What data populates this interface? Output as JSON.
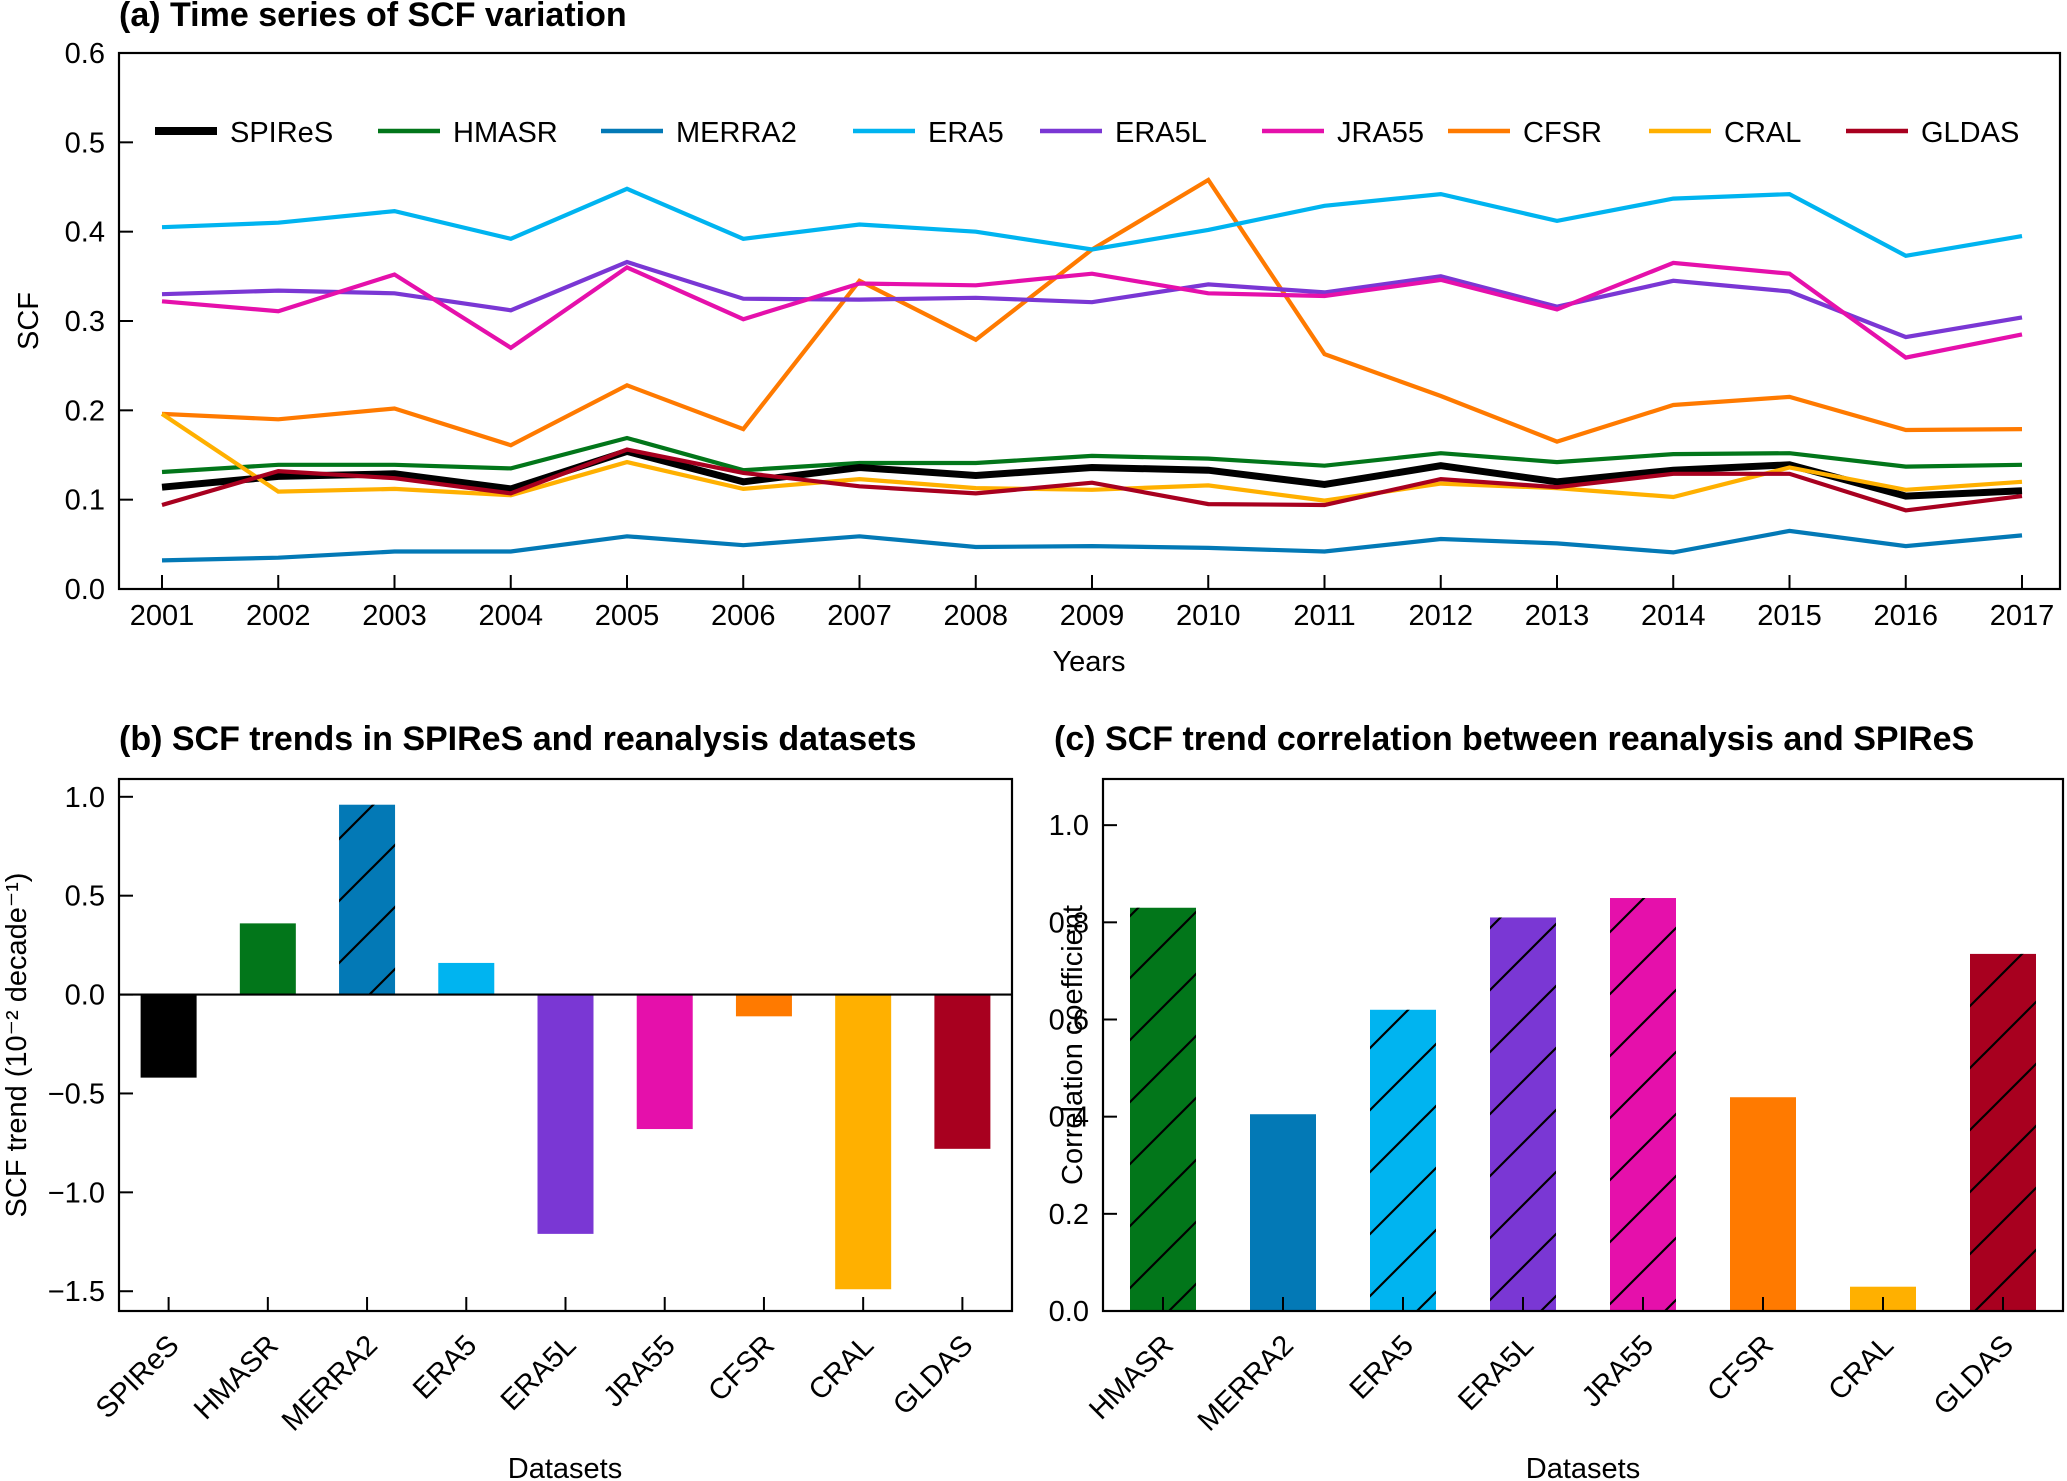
{
  "chart_data": [
    {
      "id": "a",
      "type": "line",
      "title": "(a) Time series of SCF variation",
      "xlabel": "Years",
      "ylabel": "SCF",
      "ylim": [
        0.0,
        0.6
      ],
      "yticks": [
        "0.0",
        "0.1",
        "0.2",
        "0.3",
        "0.4",
        "0.5",
        "0.6"
      ],
      "x": [
        "2001",
        "2002",
        "2003",
        "2004",
        "2005",
        "2006",
        "2007",
        "2008",
        "2009",
        "2010",
        "2011",
        "2012",
        "2013",
        "2014",
        "2015",
        "2016",
        "2017"
      ],
      "legend_position": "top",
      "series": [
        {
          "name": "SPIReS",
          "color": "#000000",
          "bold": true,
          "values": [
            0.114,
            0.126,
            0.129,
            0.112,
            0.154,
            0.12,
            0.136,
            0.127,
            0.136,
            0.133,
            0.117,
            0.138,
            0.12,
            0.133,
            0.139,
            0.104,
            0.11
          ]
        },
        {
          "name": "HMASR",
          "color": "#02761a",
          "values": [
            0.131,
            0.139,
            0.139,
            0.135,
            0.169,
            0.133,
            0.141,
            0.141,
            0.149,
            0.146,
            0.138,
            0.152,
            0.142,
            0.151,
            0.152,
            0.137,
            0.139
          ]
        },
        {
          "name": "MERRA2",
          "color": "#0379b6",
          "values": [
            0.032,
            0.035,
            0.042,
            0.042,
            0.059,
            0.049,
            0.059,
            0.047,
            0.048,
            0.046,
            0.042,
            0.056,
            0.051,
            0.041,
            0.065,
            0.048,
            0.06
          ]
        },
        {
          "name": "ERA5",
          "color": "#00b4f0",
          "values": [
            0.405,
            0.41,
            0.423,
            0.392,
            0.448,
            0.392,
            0.408,
            0.4,
            0.38,
            0.402,
            0.429,
            0.442,
            0.412,
            0.437,
            0.442,
            0.373,
            0.395
          ]
        },
        {
          "name": "ERA5L",
          "color": "#7a37d4",
          "values": [
            0.33,
            0.334,
            0.331,
            0.312,
            0.366,
            0.325,
            0.324,
            0.326,
            0.321,
            0.341,
            0.332,
            0.35,
            0.316,
            0.345,
            0.333,
            0.282,
            0.304
          ]
        },
        {
          "name": "JRA55",
          "color": "#e510ab",
          "values": [
            0.322,
            0.311,
            0.352,
            0.27,
            0.36,
            0.302,
            0.342,
            0.34,
            0.353,
            0.331,
            0.328,
            0.346,
            0.313,
            0.365,
            0.353,
            0.259,
            0.285
          ]
        },
        {
          "name": "CFSR",
          "color": "#ff7a00",
          "values": [
            0.196,
            0.19,
            0.202,
            0.161,
            0.228,
            0.179,
            0.345,
            0.279,
            0.38,
            0.458,
            0.263,
            0.216,
            0.165,
            0.206,
            0.215,
            0.178,
            0.179
          ]
        },
        {
          "name": "CRAL",
          "color": "#ffb000",
          "values": [
            0.196,
            0.109,
            0.112,
            0.105,
            0.142,
            0.112,
            0.123,
            0.113,
            0.111,
            0.116,
            0.099,
            0.118,
            0.113,
            0.103,
            0.136,
            0.111,
            0.12
          ]
        },
        {
          "name": "GLDAS",
          "color": "#a8001f",
          "values": [
            0.094,
            0.132,
            0.124,
            0.107,
            0.156,
            0.13,
            0.115,
            0.107,
            0.119,
            0.095,
            0.094,
            0.123,
            0.114,
            0.129,
            0.129,
            0.088,
            0.104
          ]
        }
      ]
    },
    {
      "id": "b",
      "type": "bar",
      "title": "(b) SCF trends in SPIReS and reanalysis datasets",
      "xlabel": "Datasets",
      "ylabel": "SCF trend (10⁻² decade⁻¹)",
      "ylim": [
        -1.6,
        1.09
      ],
      "yticks": [
        "−1.5",
        "−1.0",
        "−0.5",
        "0.0",
        "0.5",
        "1.0"
      ],
      "ytick_values": [
        -1.5,
        -1.0,
        -0.5,
        0.0,
        0.5,
        1.0
      ],
      "categories": [
        "SPIReS",
        "HMASR",
        "MERRA2",
        "ERA5",
        "ERA5L",
        "JRA55",
        "CFSR",
        "CRAL",
        "GLDAS"
      ],
      "values": [
        -0.42,
        0.36,
        0.96,
        0.16,
        -1.21,
        -0.68,
        -0.11,
        -1.49,
        -0.78
      ],
      "colors": [
        "#000000",
        "#02761a",
        "#0379b6",
        "#00b4f0",
        "#7a37d4",
        "#e510ab",
        "#ff7a00",
        "#ffb000",
        "#a8001f"
      ],
      "hatched": [
        false,
        false,
        true,
        false,
        false,
        false,
        false,
        false,
        false
      ]
    },
    {
      "id": "c",
      "type": "bar",
      "title": "(c) SCF trend correlation between reanalysis and SPIReS",
      "xlabel": "Datasets",
      "ylabel": "Correlation coefficient",
      "ylim": [
        0.0,
        1.095
      ],
      "yticks": [
        "0.0",
        "0.2",
        "0.4",
        "0.6",
        "0.8",
        "1.0"
      ],
      "ytick_values": [
        0.0,
        0.2,
        0.4,
        0.6,
        0.8,
        1.0
      ],
      "categories": [
        "HMASR",
        "MERRA2",
        "ERA5",
        "ERA5L",
        "JRA55",
        "CFSR",
        "CRAL",
        "GLDAS"
      ],
      "values": [
        0.83,
        0.405,
        0.62,
        0.81,
        0.85,
        0.44,
        0.05,
        0.735
      ],
      "colors": [
        "#02761a",
        "#0379b6",
        "#00b4f0",
        "#7a37d4",
        "#e510ab",
        "#ff7a00",
        "#ffb000",
        "#a8001f"
      ],
      "hatched": [
        true,
        false,
        true,
        true,
        true,
        false,
        false,
        true
      ]
    }
  ]
}
